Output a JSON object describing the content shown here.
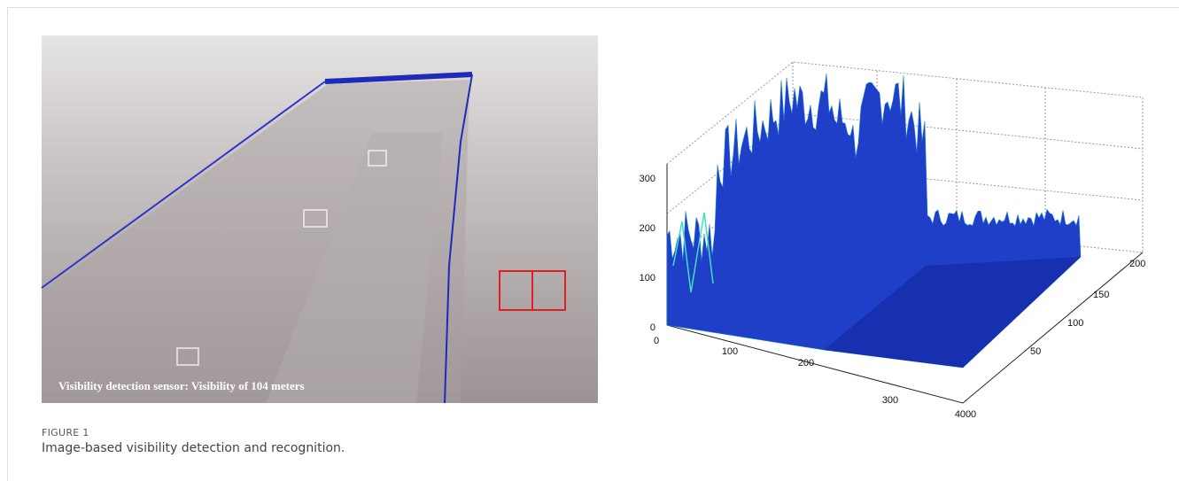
{
  "figure": {
    "label": "FIGURE 1",
    "caption": "Image-based visibility detection and recognition.",
    "photo": {
      "overlay_text": "Visibility detection sensor: Visibility of 104 meters"
    },
    "plot": {
      "z_ticks": [
        0,
        100,
        200,
        300
      ],
      "x_ticks": [
        0,
        100,
        200,
        300,
        400
      ],
      "y_ticks": [
        0,
        50,
        100,
        150,
        200
      ]
    }
  }
}
